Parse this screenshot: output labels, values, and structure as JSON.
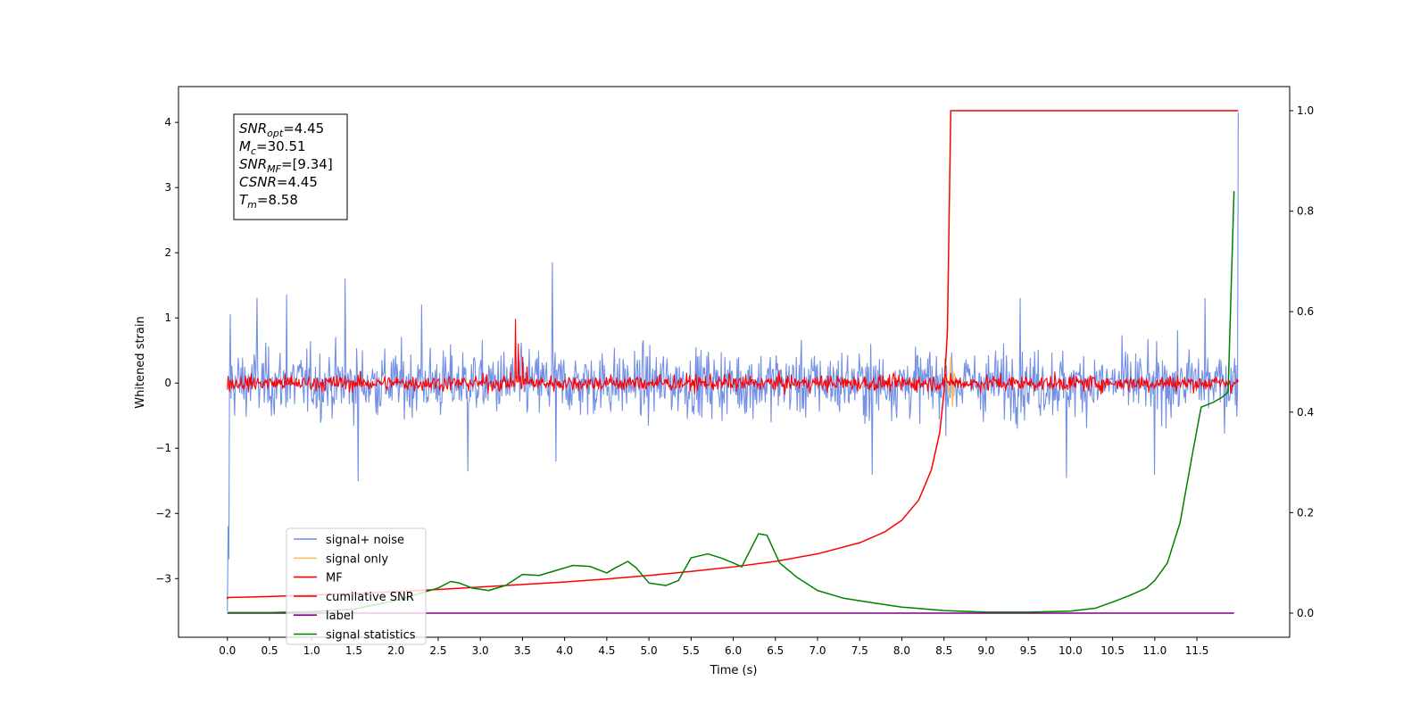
{
  "chart_data": {
    "type": "line",
    "xlabel": "Time (s)",
    "ylabel": "Whitened strain",
    "xlim": [
      -0.58,
      12.6
    ],
    "ylim": [
      -3.9,
      4.55
    ],
    "y2lim": [
      -0.048,
      1.048
    ],
    "xticks": [
      0.0,
      0.5,
      1.0,
      1.5,
      2.0,
      2.5,
      3.0,
      3.5,
      4.0,
      4.5,
      5.0,
      5.5,
      6.0,
      6.5,
      7.0,
      7.5,
      8.0,
      8.5,
      9.0,
      9.5,
      10.0,
      10.5,
      11.0,
      11.5
    ],
    "xtick_labels": [
      "0.0",
      "0.5",
      "1.0",
      "1.5",
      "2.0",
      "2.5",
      "3.0",
      "3.5",
      "4.0",
      "4.5",
      "5.0",
      "5.5",
      "6.0",
      "6.5",
      "7.0",
      "7.5",
      "8.0",
      "8.5",
      "9.0",
      "9.5",
      "10.0",
      "10.5",
      "11.0",
      "11.5"
    ],
    "yticks": [
      -3,
      -2,
      -1,
      0,
      1,
      2,
      3,
      4
    ],
    "ytick_labels": [
      "−3",
      "−2",
      "−1",
      "0",
      "1",
      "2",
      "3",
      "4"
    ],
    "y2ticks": [
      0.0,
      0.2,
      0.4,
      0.6,
      0.8,
      1.0
    ],
    "y2tick_labels": [
      "0.0",
      "0.2",
      "0.4",
      "0.6",
      "0.8",
      "1.0"
    ],
    "grid": false,
    "legend_position": "lower-left",
    "annotation": {
      "lines": [
        {
          "sym": "SNR",
          "sub": "opt",
          "val": "=4.45"
        },
        {
          "sym": "M",
          "sub": "c",
          "val": "=30.51"
        },
        {
          "sym": "SNR",
          "sub": "MF",
          "val": "=[9.34]"
        },
        {
          "sym": "CSNR",
          "sub": "",
          "val": "=4.45"
        },
        {
          "sym": "T",
          "sub": "m",
          "val": "=8.58"
        }
      ]
    },
    "series": [
      {
        "name": "signal+ noise",
        "color": "#6b8ae4",
        "axis": "left",
        "kind": "noise",
        "x_range": [
          0.0,
          11.99
        ],
        "noise_std": 0.36,
        "spikes": [
          [
            0.0,
            -3.5
          ],
          [
            0.01,
            -2.2
          ],
          [
            0.02,
            -2.7
          ],
          [
            0.03,
            1.05
          ],
          [
            0.35,
            1.3
          ],
          [
            0.7,
            1.35
          ],
          [
            1.4,
            1.6
          ],
          [
            1.55,
            -1.5
          ],
          [
            2.3,
            1.2
          ],
          [
            2.85,
            -1.35
          ],
          [
            3.85,
            1.85
          ],
          [
            3.9,
            -1.2
          ],
          [
            7.65,
            -1.4
          ],
          [
            9.4,
            1.3
          ],
          [
            9.95,
            -1.45
          ],
          [
            11.0,
            -1.4
          ],
          [
            11.6,
            1.3
          ],
          [
            11.99,
            4.15
          ]
        ]
      },
      {
        "name": "signal only",
        "color": "#f5c26b",
        "axis": "left",
        "kind": "burst",
        "points": [
          [
            8.5,
            0.0
          ],
          [
            8.53,
            0.12
          ],
          [
            8.56,
            -0.2
          ],
          [
            8.58,
            0.38
          ],
          [
            8.6,
            -0.35
          ],
          [
            8.62,
            0.15
          ],
          [
            8.66,
            0.0
          ]
        ]
      },
      {
        "name": "MF",
        "color": "#ff0000",
        "axis": "left",
        "kind": "noise",
        "x_range": [
          0.0,
          11.99
        ],
        "noise_std": 0.085,
        "spikes": [
          [
            0.0,
            -0.1
          ],
          [
            3.42,
            0.98
          ],
          [
            3.45,
            0.6
          ],
          [
            3.5,
            0.4
          ],
          [
            3.55,
            0.25
          ],
          [
            8.58,
            0.15
          ]
        ]
      },
      {
        "name": "cumilative SNR",
        "color": "#ff0000",
        "axis": "right",
        "points": [
          [
            0.0,
            0.028
          ],
          [
            0.0,
            0.031
          ],
          [
            0.5,
            0.033
          ],
          [
            1.0,
            0.036
          ],
          [
            1.5,
            0.039
          ],
          [
            2.0,
            0.043
          ],
          [
            2.5,
            0.047
          ],
          [
            3.0,
            0.052
          ],
          [
            3.5,
            0.057
          ],
          [
            4.0,
            0.062
          ],
          [
            4.5,
            0.068
          ],
          [
            5.0,
            0.075
          ],
          [
            5.5,
            0.083
          ],
          [
            6.0,
            0.092
          ],
          [
            6.5,
            0.103
          ],
          [
            7.0,
            0.118
          ],
          [
            7.5,
            0.14
          ],
          [
            7.8,
            0.162
          ],
          [
            8.0,
            0.185
          ],
          [
            8.2,
            0.225
          ],
          [
            8.35,
            0.285
          ],
          [
            8.45,
            0.36
          ],
          [
            8.5,
            0.44
          ],
          [
            8.54,
            0.56
          ],
          [
            8.56,
            0.78
          ],
          [
            8.58,
            1.0
          ],
          [
            11.99,
            1.0
          ]
        ]
      },
      {
        "name": "label",
        "color": "#800080",
        "axis": "right",
        "points": [
          [
            0.0,
            0.0
          ],
          [
            11.94,
            0.0
          ]
        ]
      },
      {
        "name": "signal statistics",
        "color": "#008000",
        "axis": "right",
        "points": [
          [
            0.0,
            0.001
          ],
          [
            0.5,
            0.001
          ],
          [
            1.0,
            0.003
          ],
          [
            1.5,
            0.008
          ],
          [
            2.0,
            0.025
          ],
          [
            2.3,
            0.04
          ],
          [
            2.5,
            0.05
          ],
          [
            2.65,
            0.063
          ],
          [
            2.75,
            0.06
          ],
          [
            2.9,
            0.05
          ],
          [
            3.1,
            0.045
          ],
          [
            3.3,
            0.055
          ],
          [
            3.5,
            0.077
          ],
          [
            3.7,
            0.075
          ],
          [
            3.9,
            0.085
          ],
          [
            4.1,
            0.095
          ],
          [
            4.3,
            0.093
          ],
          [
            4.5,
            0.08
          ],
          [
            4.6,
            0.09
          ],
          [
            4.75,
            0.103
          ],
          [
            4.85,
            0.09
          ],
          [
            5.0,
            0.06
          ],
          [
            5.2,
            0.055
          ],
          [
            5.35,
            0.065
          ],
          [
            5.5,
            0.11
          ],
          [
            5.7,
            0.118
          ],
          [
            5.85,
            0.11
          ],
          [
            6.0,
            0.1
          ],
          [
            6.1,
            0.092
          ],
          [
            6.3,
            0.158
          ],
          [
            6.4,
            0.155
          ],
          [
            6.55,
            0.1
          ],
          [
            6.75,
            0.072
          ],
          [
            7.0,
            0.045
          ],
          [
            7.3,
            0.03
          ],
          [
            7.6,
            0.022
          ],
          [
            8.0,
            0.012
          ],
          [
            8.5,
            0.005
          ],
          [
            9.0,
            0.002
          ],
          [
            9.5,
            0.002
          ],
          [
            10.0,
            0.004
          ],
          [
            10.3,
            0.01
          ],
          [
            10.5,
            0.022
          ],
          [
            10.7,
            0.035
          ],
          [
            10.9,
            0.05
          ],
          [
            11.0,
            0.065
          ],
          [
            11.15,
            0.1
          ],
          [
            11.3,
            0.18
          ],
          [
            11.45,
            0.32
          ],
          [
            11.55,
            0.41
          ],
          [
            11.7,
            0.42
          ],
          [
            11.8,
            0.43
          ],
          [
            11.87,
            0.44
          ],
          [
            11.94,
            0.84
          ]
        ]
      }
    ]
  }
}
